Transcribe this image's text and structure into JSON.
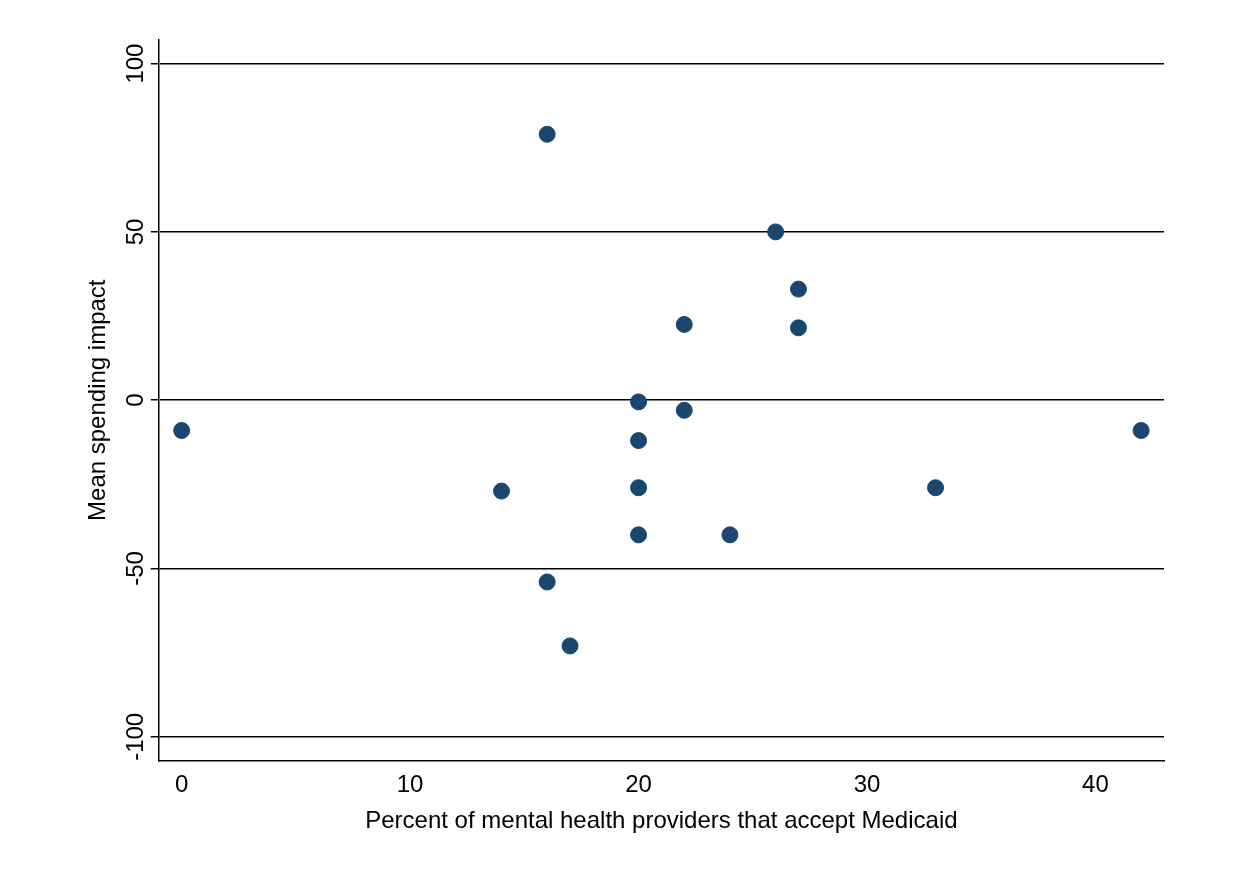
{
  "chart_data": {
    "type": "scatter",
    "xlabel": "Percent of mental health providers that accept Medicaid",
    "ylabel": "Mean spending impact",
    "x": [
      0,
      16,
      26,
      27,
      22,
      27,
      20,
      22,
      20,
      14,
      20,
      33,
      42,
      20,
      24,
      16,
      17
    ],
    "series": [
      {
        "color": "#1a476f",
        "values": [
          -9,
          79,
          50,
          33,
          22.5,
          21.5,
          -0.5,
          -3,
          -12,
          -27,
          -26,
          -26,
          -9,
          -40,
          -40,
          -54,
          -73
        ]
      }
    ],
    "xlim": [
      -1,
      43
    ],
    "xticks": [
      0,
      10,
      20,
      30,
      40
    ],
    "ylim": [
      -107,
      107
    ],
    "yticks": [
      -100,
      -50,
      0,
      50,
      100
    ],
    "grid": "y",
    "legend": false,
    "marker": "circle"
  }
}
